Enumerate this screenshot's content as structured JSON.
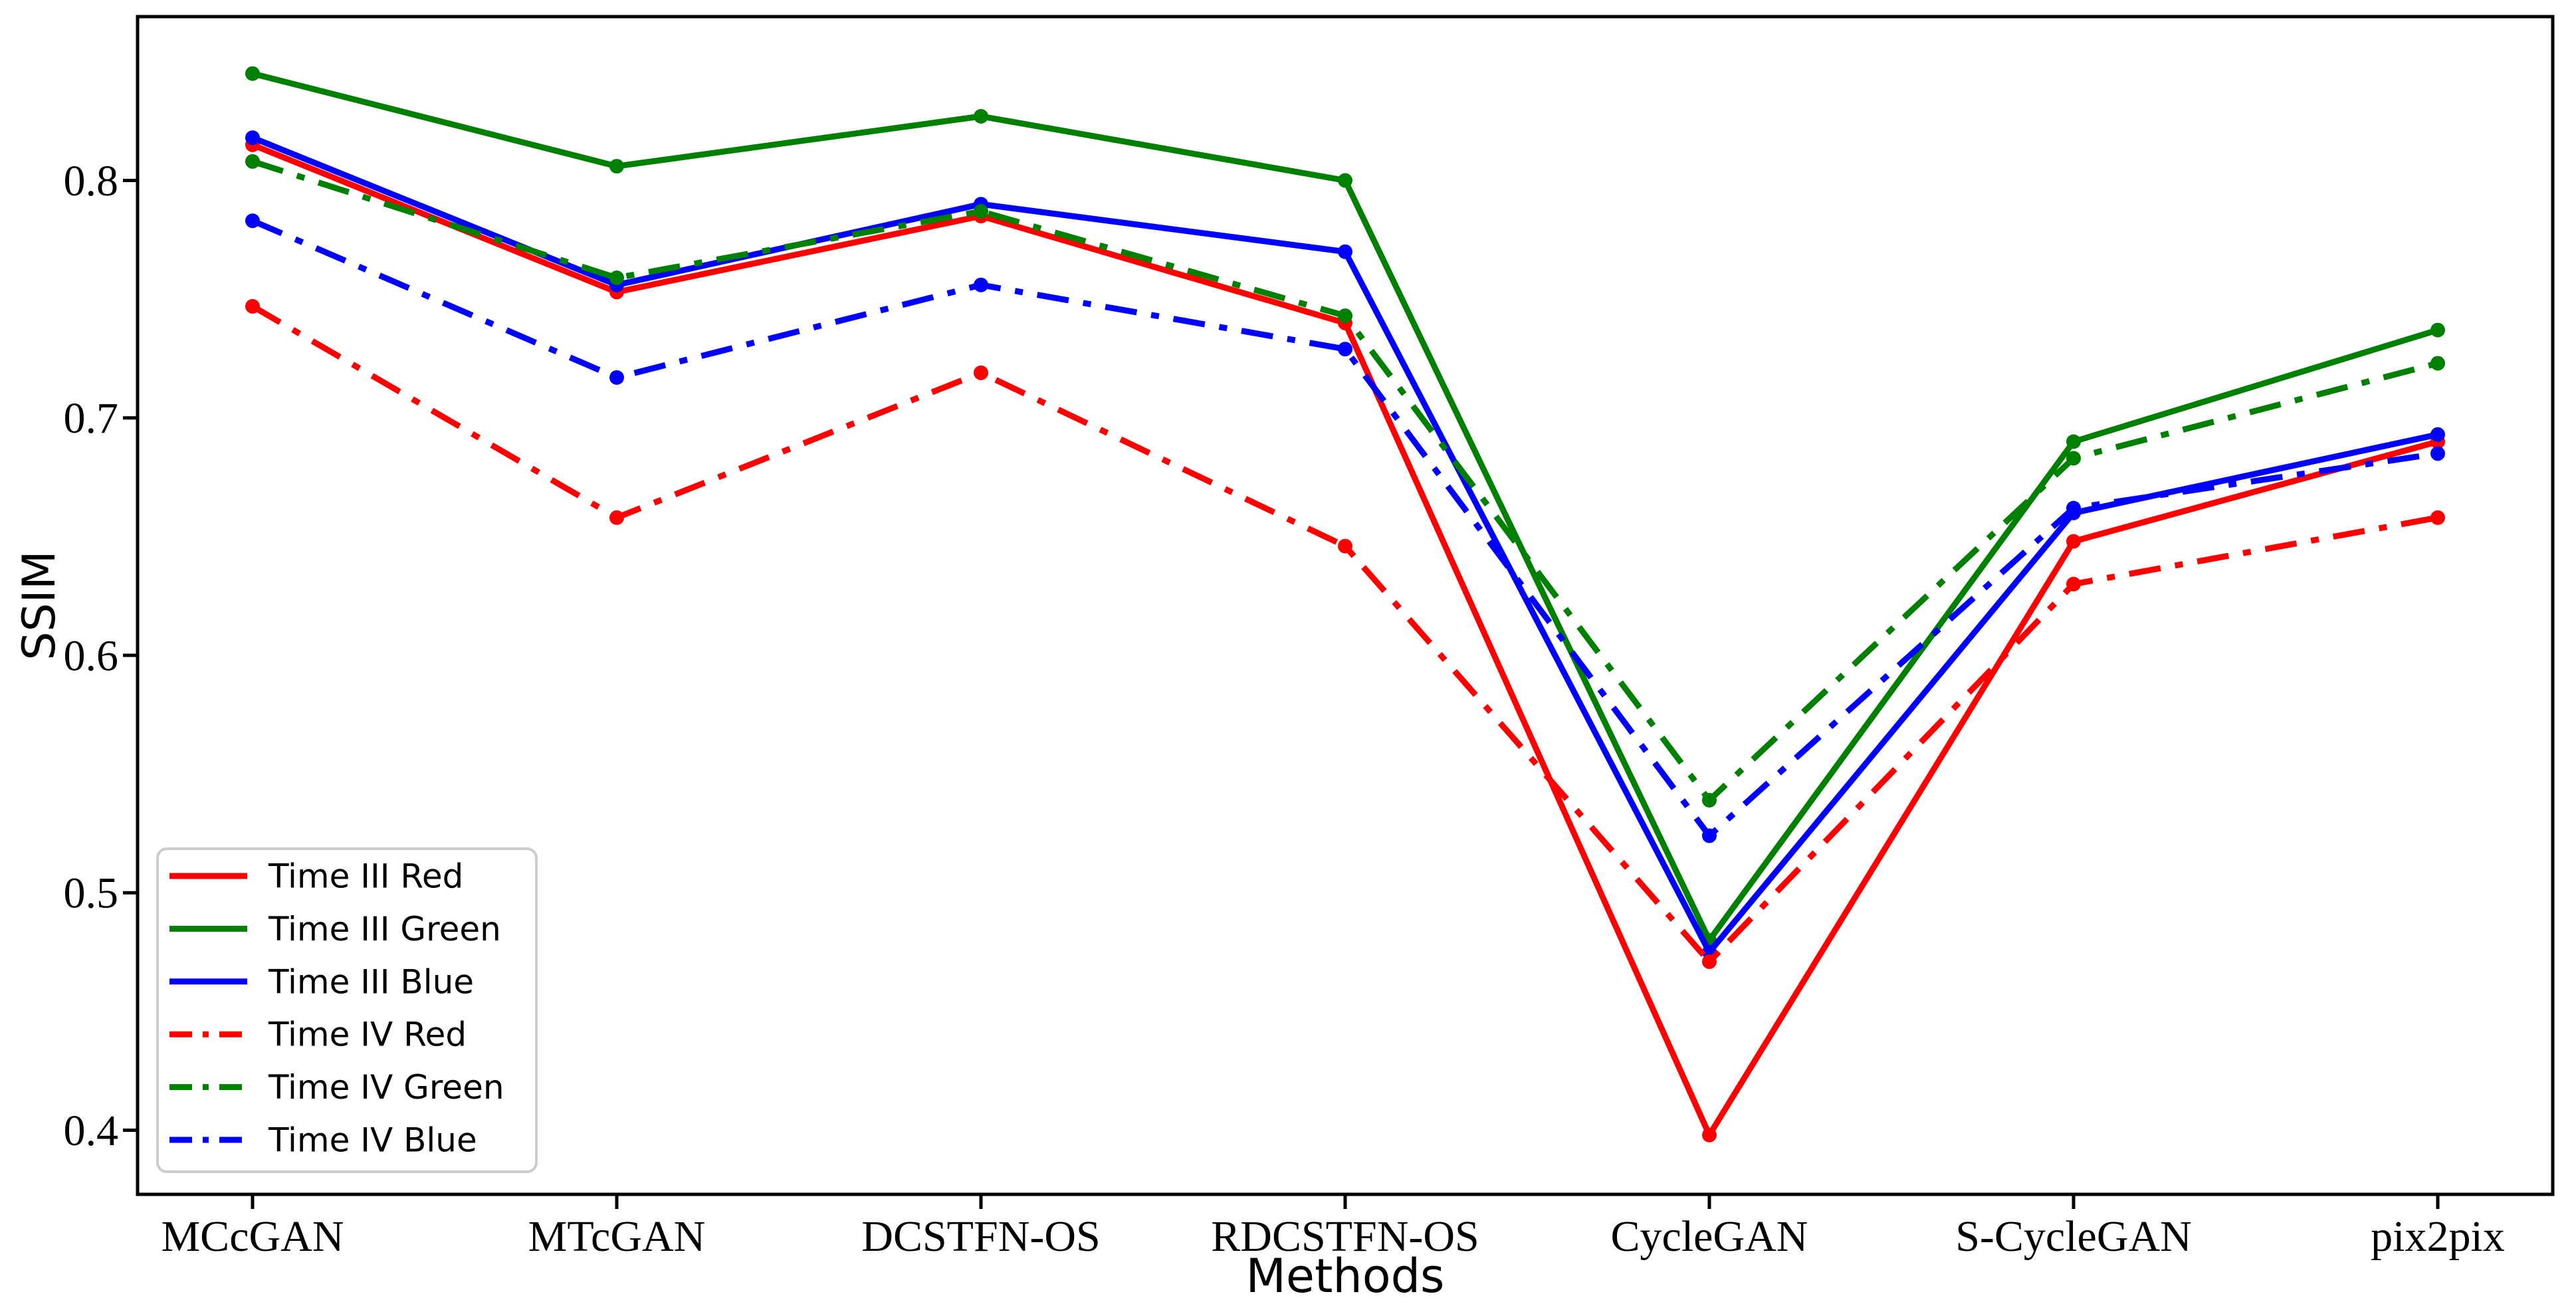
{
  "chart_data": {
    "type": "line",
    "title": "",
    "xlabel": "Methods",
    "ylabel": "SSIM",
    "categories": [
      "MCcGAN",
      "MTcGAN",
      "DCSTFN-OS",
      "RDCSTFN-OS",
      "CycleGAN",
      "S-CycleGAN",
      "pix2pix"
    ],
    "series": [
      {
        "name": "Time III Red",
        "color": "#ff0000",
        "line_style": "solid",
        "marker": "circle",
        "values": [
          0.815,
          0.753,
          0.785,
          0.74,
          0.398,
          0.648,
          0.69
        ]
      },
      {
        "name": "Time III Green",
        "color": "#008000",
        "line_style": "solid",
        "marker": "circle",
        "values": [
          0.845,
          0.806,
          0.827,
          0.8,
          0.48,
          0.69,
          0.737
        ]
      },
      {
        "name": "Time III Blue",
        "color": "#0000ff",
        "line_style": "solid",
        "marker": "circle",
        "values": [
          0.818,
          0.756,
          0.79,
          0.77,
          0.475,
          0.66,
          0.693
        ]
      },
      {
        "name": "Time IV Red",
        "color": "#ff0000",
        "line_style": "dashdot",
        "marker": "circle",
        "values": [
          0.747,
          0.658,
          0.719,
          0.646,
          0.471,
          0.63,
          0.658
        ]
      },
      {
        "name": "Time IV Green",
        "color": "#008000",
        "line_style": "dashdot",
        "marker": "circle",
        "values": [
          0.808,
          0.759,
          0.787,
          0.743,
          0.539,
          0.683,
          0.723
        ]
      },
      {
        "name": "Time IV Blue",
        "color": "#0000ff",
        "line_style": "dashdot",
        "marker": "circle",
        "values": [
          0.783,
          0.717,
          0.756,
          0.729,
          0.524,
          0.662,
          0.685
        ]
      }
    ],
    "ytick_labels": [
      "0.8",
      "0.7",
      "0.6",
      "0.5",
      "0.4"
    ],
    "ylim": [
      0.373,
      0.869
    ],
    "grid": false,
    "legend_position": "lower-left",
    "background_color": "#ffffff",
    "axis_color": "#000000",
    "legend_border_color": "#cccccc"
  }
}
